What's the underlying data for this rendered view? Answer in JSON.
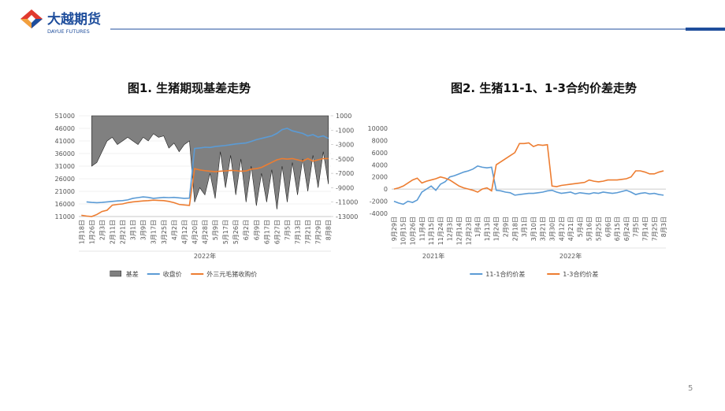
{
  "header": {
    "brand": "大越期货",
    "brand_en": "DAYUE FUTURES"
  },
  "page_number": "5",
  "chart_data": [
    {
      "type": "combo",
      "title": "图1. 生猪期现基差走势",
      "categories": [
        "1月18日",
        null,
        "1月26日",
        null,
        "2月3日",
        null,
        "2月11日",
        null,
        "2月21日",
        null,
        "3月1日",
        null,
        "3月9日",
        null,
        "3月17日",
        null,
        "3月25日",
        null,
        "4月2日",
        null,
        "4月12日",
        null,
        "4月20日",
        null,
        "4月28日",
        null,
        "5月9日",
        null,
        "5月17日",
        null,
        "5月26日",
        null,
        "6月2日",
        null,
        "6月9日",
        null,
        "6月17日",
        null,
        "6月27日",
        null,
        "7月5日",
        null,
        "7月13日",
        null,
        "7月21日",
        null,
        "7月29日",
        null,
        "8月8日"
      ],
      "x_group_labels": [
        "2022年"
      ],
      "ylim": [
        11000,
        51000
      ],
      "yticks": [
        11000,
        16000,
        21000,
        26000,
        31000,
        36000,
        41000,
        46000,
        51000
      ],
      "y2lim": [
        -13000,
        1000
      ],
      "y2ticks": [
        -13000,
        -11000,
        -9000,
        -7000,
        -5000,
        -3000,
        -1000,
        1000
      ],
      "grid": true,
      "legend": "bottom",
      "series": [
        {
          "name": "基差",
          "type": "area",
          "axis": "y2",
          "color": "#808080",
          "values": [
            null,
            null,
            -6000,
            -5500,
            -4000,
            -2500,
            -2000,
            -3000,
            -2500,
            -2000,
            -2500,
            -3000,
            -2000,
            -2500,
            -1500,
            -2000,
            -1800,
            -3500,
            -2800,
            -4000,
            -3000,
            -2500,
            -11000,
            -9000,
            -10000,
            -7000,
            -10500,
            -4000,
            -9000,
            -4500,
            -10000,
            -5000,
            -11000,
            -6000,
            -11500,
            -7000,
            -11000,
            -6500,
            -12000,
            -6000,
            -11000,
            -5500,
            -10000,
            -5000,
            -9500,
            -4500,
            -9000,
            -4000,
            -8500
          ]
        },
        {
          "name": "收盘价",
          "type": "line",
          "color": "#5b9bd5",
          "values": [
            null,
            16800,
            16600,
            16500,
            16600,
            16800,
            17000,
            17200,
            17300,
            17600,
            18200,
            18500,
            18800,
            18600,
            18200,
            18400,
            18600,
            18500,
            18600,
            18400,
            18200,
            18300,
            38000,
            38200,
            38500,
            38400,
            38800,
            39000,
            39200,
            39500,
            39800,
            40000,
            40200,
            40800,
            41500,
            42000,
            42500,
            43000,
            44000,
            45500,
            46000,
            45000,
            44500,
            44000,
            43000,
            43500,
            42500,
            43000,
            42000
          ]
        },
        {
          "name": "外三元毛猪收购价",
          "type": "line",
          "color": "#ed7d31",
          "values": [
            11500,
            11200,
            11000,
            11800,
            13000,
            13500,
            15500,
            15800,
            16000,
            16500,
            16800,
            17000,
            17200,
            17300,
            17500,
            17400,
            17300,
            17000,
            16500,
            15800,
            15600,
            15400,
            30000,
            29500,
            29200,
            29000,
            28800,
            29000,
            29100,
            29300,
            29200,
            29000,
            29100,
            29800,
            30000,
            30500,
            31500,
            32500,
            33500,
            34000,
            33800,
            34000,
            33500,
            33000,
            34000,
            33000,
            33500,
            34000,
            34000
          ]
        }
      ]
    },
    {
      "type": "line",
      "title": "图2. 生猪11-1、1-3合约价差走势",
      "categories": [
        "9月29日",
        null,
        "10月15日",
        null,
        "10月26日",
        null,
        "11月4日",
        null,
        "11月15日",
        null,
        "11月24日",
        null,
        "12月3日",
        null,
        "12月14日",
        null,
        "12月23日",
        null,
        "1月4日",
        null,
        "1月13日",
        null,
        "1月24日",
        null,
        "2月9日",
        null,
        "2月18日",
        null,
        "3月1日",
        null,
        "3月10日",
        null,
        "3月21日",
        null,
        "3月30日",
        null,
        "4月12日",
        null,
        "4月21日",
        null,
        "5月4日",
        null,
        "5月16日",
        null,
        "5月25日",
        null,
        "6月6日",
        null,
        "6月15日",
        null,
        "6月24日",
        null,
        "7月5日",
        null,
        "7月14日",
        null,
        "7月25日",
        null,
        "8月3日"
      ],
      "x_group_labels": [
        "2021年",
        "2022年"
      ],
      "ylim": [
        -4000,
        10000
      ],
      "yticks": [
        -4000,
        -2000,
        0,
        2000,
        4000,
        6000,
        8000,
        10000
      ],
      "grid": false,
      "legend": "bottom",
      "series": [
        {
          "name": "11-1合约价差",
          "type": "line",
          "color": "#5b9bd5",
          "values": [
            -2000,
            -2300,
            -2500,
            -2000,
            -2200,
            -1800,
            -500,
            0,
            500,
            -200,
            800,
            1200,
            2000,
            2200,
            2500,
            2800,
            3000,
            3300,
            3800,
            3600,
            3500,
            3600,
            -200,
            -300,
            -500,
            -600,
            -1000,
            -900,
            -800,
            -700,
            -700,
            -600,
            -500,
            -300,
            -200,
            -500,
            -700,
            -600,
            -500,
            -800,
            -600,
            -700,
            -800,
            -600,
            -700,
            -500,
            -600,
            -700,
            -600,
            -400,
            -200,
            -500,
            -900,
            -700,
            -600,
            -800,
            -700,
            -900,
            -1000
          ]
        },
        {
          "name": "1-3合约价差",
          "type": "line",
          "color": "#ed7d31",
          "values": [
            0,
            200,
            500,
            1000,
            1500,
            1800,
            1000,
            1300,
            1500,
            1700,
            2000,
            1800,
            1500,
            1000,
            500,
            200,
            0,
            -200,
            -500,
            0,
            200,
            -300,
            4000,
            4500,
            5000,
            5500,
            6000,
            7500,
            7500,
            7600,
            7000,
            7300,
            7200,
            7300,
            500,
            400,
            600,
            700,
            800,
            900,
            1000,
            1100,
            1500,
            1300,
            1200,
            1300,
            1500,
            1500,
            1500,
            1600,
            1700,
            2000,
            3000,
            3000,
            2800,
            2500,
            2500,
            2800,
            3000
          ]
        }
      ]
    }
  ]
}
